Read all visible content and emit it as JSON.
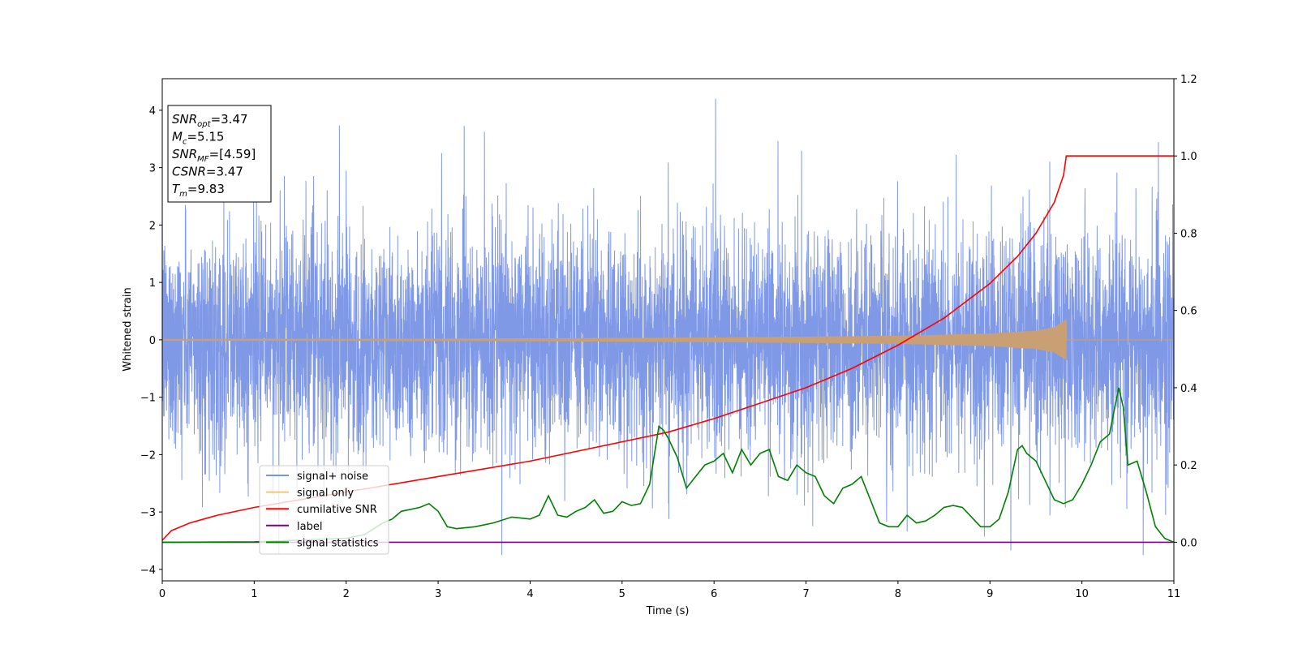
{
  "chart_data": {
    "type": "line",
    "xlabel": "Time (s)",
    "ylabel": "Whitened strain",
    "xlim": [
      0,
      11
    ],
    "ylim": [
      -4.2,
      4.55
    ],
    "y2lim": [
      -0.1,
      1.2
    ],
    "x_ticks": [
      "0",
      "1",
      "2",
      "3",
      "4",
      "5",
      "6",
      "7",
      "8",
      "9",
      "10",
      "11"
    ],
    "y_ticks": [
      "−4",
      "−3",
      "−2",
      "−1",
      "0",
      "1",
      "2",
      "3",
      "4"
    ],
    "y2_ticks": [
      "0.0",
      "0.2",
      "0.4",
      "0.6",
      "0.8",
      "1.0",
      "1.2"
    ],
    "info_box": {
      "lines": [
        {
          "base": "SNR",
          "sub": "opt",
          "rest": "=3.47"
        },
        {
          "base": "M",
          "sub": "c",
          "rest": "=5.15"
        },
        {
          "base": "SNR",
          "sub": "MF",
          "rest": "=[4.59]"
        },
        {
          "base": "CSNR",
          "sub": "",
          "rest": "=3.47"
        },
        {
          "base": "T",
          "sub": "m",
          "rest": "=9.83"
        }
      ]
    },
    "legend": {
      "placement": "lower-left",
      "entries": [
        {
          "name": "signal+ noise",
          "color": "#7994e6"
        },
        {
          "name": "signal only",
          "color": "#f5c37a"
        },
        {
          "name": "cumilative SNR",
          "color": "#ff0000"
        },
        {
          "name": "label",
          "color": "#800080"
        },
        {
          "name": "signal statistics",
          "color": "#008000"
        }
      ]
    },
    "series": [
      {
        "name": "signal+ noise",
        "axis": "left",
        "kind": "noise",
        "amplitude_sigma": 1.0,
        "range": [
          -3.75,
          4.2
        ],
        "color": "#7994e6"
      },
      {
        "name": "signal only",
        "axis": "left",
        "kind": "chirp_envelope",
        "x": [
          0,
          2,
          4,
          6,
          8,
          9,
          9.5,
          9.7,
          9.83,
          9.831,
          11
        ],
        "amplitude": [
          0.015,
          0.018,
          0.025,
          0.04,
          0.07,
          0.11,
          0.16,
          0.22,
          0.35,
          0,
          0
        ],
        "color": "#c9a074"
      },
      {
        "name": "cumilative SNR",
        "axis": "right",
        "x": [
          0,
          0.1,
          0.3,
          0.6,
          1,
          2,
          3,
          4,
          5,
          5.5,
          6,
          6.5,
          7,
          7.5,
          8,
          8.5,
          9,
          9.3,
          9.5,
          9.7,
          9.8,
          9.83,
          11
        ],
        "y": [
          0.005,
          0.03,
          0.05,
          0.07,
          0.09,
          0.13,
          0.17,
          0.21,
          0.26,
          0.285,
          0.32,
          0.36,
          0.4,
          0.45,
          0.51,
          0.58,
          0.67,
          0.74,
          0.8,
          0.88,
          0.95,
          1.0,
          1.0
        ],
        "color": "#ff0000"
      },
      {
        "name": "label",
        "axis": "right",
        "x": [
          0,
          11
        ],
        "y": [
          0,
          0
        ],
        "color": "#800080"
      },
      {
        "name": "signal statistics",
        "axis": "right",
        "x": [
          0,
          1,
          2,
          2.2,
          2.4,
          2.5,
          2.6,
          2.8,
          2.9,
          3.0,
          3.1,
          3.2,
          3.4,
          3.6,
          3.8,
          4.0,
          4.1,
          4.2,
          4.3,
          4.4,
          4.5,
          4.6,
          4.7,
          4.8,
          4.9,
          5.0,
          5.1,
          5.2,
          5.3,
          5.4,
          5.45,
          5.5,
          5.6,
          5.7,
          5.8,
          5.9,
          6.0,
          6.1,
          6.2,
          6.3,
          6.4,
          6.5,
          6.6,
          6.7,
          6.8,
          6.9,
          7.0,
          7.1,
          7.2,
          7.3,
          7.4,
          7.5,
          7.6,
          7.7,
          7.8,
          7.9,
          8.0,
          8.1,
          8.2,
          8.3,
          8.4,
          8.5,
          8.6,
          8.7,
          8.8,
          8.9,
          9.0,
          9.1,
          9.2,
          9.3,
          9.35,
          9.4,
          9.5,
          9.6,
          9.7,
          9.8,
          9.9,
          10.0,
          10.1,
          10.2,
          10.3,
          10.4,
          10.45,
          10.5,
          10.6,
          10.7,
          10.8,
          10.9,
          11
        ],
        "y": [
          0,
          0.001,
          0.01,
          0.02,
          0.05,
          0.06,
          0.08,
          0.09,
          0.1,
          0.08,
          0.04,
          0.035,
          0.04,
          0.05,
          0.065,
          0.06,
          0.07,
          0.12,
          0.07,
          0.065,
          0.08,
          0.09,
          0.11,
          0.075,
          0.08,
          0.105,
          0.095,
          0.1,
          0.15,
          0.3,
          0.29,
          0.27,
          0.22,
          0.14,
          0.17,
          0.2,
          0.21,
          0.23,
          0.18,
          0.24,
          0.2,
          0.23,
          0.24,
          0.17,
          0.16,
          0.2,
          0.18,
          0.17,
          0.12,
          0.1,
          0.14,
          0.15,
          0.17,
          0.11,
          0.05,
          0.04,
          0.04,
          0.07,
          0.05,
          0.055,
          0.07,
          0.09,
          0.095,
          0.09,
          0.065,
          0.04,
          0.04,
          0.06,
          0.13,
          0.24,
          0.25,
          0.23,
          0.21,
          0.16,
          0.11,
          0.1,
          0.11,
          0.15,
          0.2,
          0.26,
          0.28,
          0.4,
          0.35,
          0.2,
          0.21,
          0.13,
          0.04,
          0.01,
          0
        ]
      }
    ]
  }
}
